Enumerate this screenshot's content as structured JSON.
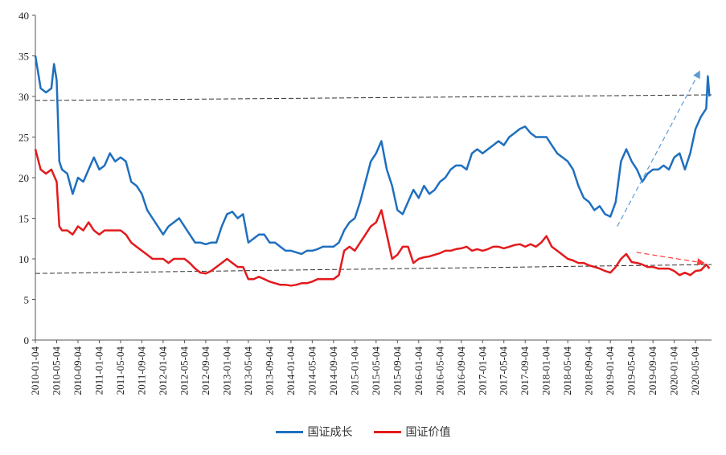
{
  "chart_data": {
    "type": "line",
    "title": "",
    "xlabel": "",
    "ylabel": "",
    "x_unit": "months since 2010-01-04",
    "xlim": [
      0,
      127
    ],
    "ylim": [
      0,
      40
    ],
    "yticks": [
      0,
      5,
      10,
      15,
      20,
      25,
      30,
      35,
      40
    ],
    "xtick_labels": [
      "2010-01-04",
      "2010-05-04",
      "2010-09-04",
      "2011-01-04",
      "2011-05-04",
      "2011-09-04",
      "2012-01-04",
      "2012-05-04",
      "2012-09-04",
      "2013-01-04",
      "2013-05-04",
      "2013-09-04",
      "2014-01-04",
      "2014-05-04",
      "2014-09-04",
      "2015-01-04",
      "2015-05-04",
      "2015-09-04",
      "2016-01-04",
      "2016-05-04",
      "2016-09-04",
      "2017-01-04",
      "2017-05-04",
      "2017-09-04",
      "2018-01-04",
      "2018-05-04",
      "2018-09-04",
      "2019-01-04",
      "2019-05-04",
      "2019-09-04",
      "2020-01-04",
      "2020-05-04"
    ],
    "grid": false,
    "legend_position": "bottom-center",
    "series": [
      {
        "name": "国证成长",
        "color": "#1F6FBF",
        "points": [
          [
            0,
            35
          ],
          [
            0.5,
            33
          ],
          [
            1,
            31
          ],
          [
            2,
            30.5
          ],
          [
            3,
            31
          ],
          [
            3.5,
            34
          ],
          [
            4,
            32
          ],
          [
            4.5,
            22
          ],
          [
            5,
            21
          ],
          [
            6,
            20.5
          ],
          [
            7,
            18
          ],
          [
            8,
            20
          ],
          [
            9,
            19.5
          ],
          [
            10,
            21
          ],
          [
            11,
            22.5
          ],
          [
            12,
            21
          ],
          [
            13,
            21.5
          ],
          [
            14,
            23
          ],
          [
            15,
            22
          ],
          [
            16,
            22.5
          ],
          [
            17,
            22
          ],
          [
            18,
            19.5
          ],
          [
            19,
            19
          ],
          [
            20,
            18
          ],
          [
            21,
            16
          ],
          [
            22,
            15
          ],
          [
            23,
            14
          ],
          [
            24,
            13
          ],
          [
            25,
            14
          ],
          [
            26,
            14.5
          ],
          [
            27,
            15
          ],
          [
            28,
            14
          ],
          [
            29,
            13
          ],
          [
            30,
            12
          ],
          [
            31,
            12
          ],
          [
            32,
            11.8
          ],
          [
            33,
            12
          ],
          [
            34,
            12
          ],
          [
            35,
            14
          ],
          [
            36,
            15.5
          ],
          [
            37,
            15.8
          ],
          [
            38,
            15
          ],
          [
            39,
            15.5
          ],
          [
            40,
            12
          ],
          [
            41,
            12.5
          ],
          [
            42,
            13
          ],
          [
            43,
            13
          ],
          [
            44,
            12
          ],
          [
            45,
            12
          ],
          [
            46,
            11.5
          ],
          [
            47,
            11
          ],
          [
            48,
            11
          ],
          [
            49,
            10.8
          ],
          [
            50,
            10.6
          ],
          [
            51,
            11
          ],
          [
            52,
            11
          ],
          [
            53,
            11.2
          ],
          [
            54,
            11.5
          ],
          [
            55,
            11.5
          ],
          [
            56,
            11.5
          ],
          [
            57,
            12
          ],
          [
            58,
            13.5
          ],
          [
            59,
            14.5
          ],
          [
            60,
            15
          ],
          [
            61,
            17
          ],
          [
            62,
            19.5
          ],
          [
            63,
            22
          ],
          [
            64,
            23
          ],
          [
            65,
            24.5
          ],
          [
            66,
            21
          ],
          [
            67,
            19
          ],
          [
            68,
            16
          ],
          [
            69,
            15.5
          ],
          [
            70,
            17
          ],
          [
            71,
            18.5
          ],
          [
            72,
            17.5
          ],
          [
            73,
            19
          ],
          [
            74,
            18
          ],
          [
            75,
            18.5
          ],
          [
            76,
            19.5
          ],
          [
            77,
            20
          ],
          [
            78,
            21
          ],
          [
            79,
            21.5
          ],
          [
            80,
            21.5
          ],
          [
            81,
            21
          ],
          [
            82,
            23
          ],
          [
            83,
            23.5
          ],
          [
            84,
            23
          ],
          [
            85,
            23.5
          ],
          [
            86,
            24
          ],
          [
            87,
            24.5
          ],
          [
            88,
            24
          ],
          [
            89,
            25
          ],
          [
            90,
            25.5
          ],
          [
            91,
            26
          ],
          [
            92,
            26.3
          ],
          [
            93,
            25.5
          ],
          [
            94,
            25
          ],
          [
            95,
            25
          ],
          [
            96,
            25
          ],
          [
            97,
            24
          ],
          [
            98,
            23
          ],
          [
            99,
            22.5
          ],
          [
            100,
            22
          ],
          [
            101,
            21
          ],
          [
            102,
            19
          ],
          [
            103,
            17.5
          ],
          [
            104,
            17
          ],
          [
            105,
            16
          ],
          [
            106,
            16.5
          ],
          [
            107,
            15.5
          ],
          [
            108,
            15.2
          ],
          [
            109,
            17
          ],
          [
            110,
            22
          ],
          [
            111,
            23.5
          ],
          [
            112,
            22
          ],
          [
            113,
            21
          ],
          [
            114,
            19.5
          ],
          [
            115,
            20.5
          ],
          [
            116,
            21
          ],
          [
            117,
            21
          ],
          [
            118,
            21.5
          ],
          [
            119,
            21
          ],
          [
            120,
            22.5
          ],
          [
            121,
            23
          ],
          [
            122,
            21
          ],
          [
            123,
            23
          ],
          [
            124,
            26
          ],
          [
            125,
            27.5
          ],
          [
            126,
            28.5
          ],
          [
            126.3,
            32.5
          ],
          [
            126.6,
            30
          ]
        ]
      },
      {
        "name": "国证价值",
        "color": "#E31A1C",
        "points": [
          [
            0,
            23.5
          ],
          [
            1,
            21
          ],
          [
            2,
            20.5
          ],
          [
            3,
            21
          ],
          [
            4,
            19.5
          ],
          [
            4.5,
            14
          ],
          [
            5,
            13.5
          ],
          [
            6,
            13.5
          ],
          [
            7,
            13
          ],
          [
            8,
            14
          ],
          [
            9,
            13.5
          ],
          [
            10,
            14.5
          ],
          [
            11,
            13.5
          ],
          [
            12,
            13
          ],
          [
            13,
            13.5
          ],
          [
            14,
            13.5
          ],
          [
            15,
            13.5
          ],
          [
            16,
            13.5
          ],
          [
            17,
            13
          ],
          [
            18,
            12
          ],
          [
            19,
            11.5
          ],
          [
            20,
            11
          ],
          [
            21,
            10.5
          ],
          [
            22,
            10
          ],
          [
            23,
            10
          ],
          [
            24,
            10
          ],
          [
            25,
            9.5
          ],
          [
            26,
            10
          ],
          [
            27,
            10
          ],
          [
            28,
            10
          ],
          [
            29,
            9.5
          ],
          [
            30,
            8.8
          ],
          [
            31,
            8.3
          ],
          [
            32,
            8.2
          ],
          [
            33,
            8.5
          ],
          [
            34,
            9
          ],
          [
            35,
            9.5
          ],
          [
            36,
            10
          ],
          [
            37,
            9.5
          ],
          [
            38,
            9
          ],
          [
            39,
            9
          ],
          [
            40,
            7.5
          ],
          [
            41,
            7.5
          ],
          [
            42,
            7.8
          ],
          [
            43,
            7.5
          ],
          [
            44,
            7.2
          ],
          [
            45,
            7
          ],
          [
            46,
            6.8
          ],
          [
            47,
            6.8
          ],
          [
            48,
            6.7
          ],
          [
            49,
            6.8
          ],
          [
            50,
            7
          ],
          [
            51,
            7
          ],
          [
            52,
            7.2
          ],
          [
            53,
            7.5
          ],
          [
            54,
            7.5
          ],
          [
            55,
            7.5
          ],
          [
            56,
            7.5
          ],
          [
            57,
            8
          ],
          [
            58,
            11
          ],
          [
            59,
            11.5
          ],
          [
            60,
            11
          ],
          [
            61,
            12
          ],
          [
            62,
            13
          ],
          [
            63,
            14
          ],
          [
            64,
            14.5
          ],
          [
            65,
            16
          ],
          [
            66,
            13
          ],
          [
            67,
            10
          ],
          [
            68,
            10.5
          ],
          [
            69,
            11.5
          ],
          [
            70,
            11.5
          ],
          [
            71,
            9.5
          ],
          [
            72,
            10
          ],
          [
            73,
            10.2
          ],
          [
            74,
            10.3
          ],
          [
            75,
            10.5
          ],
          [
            76,
            10.7
          ],
          [
            77,
            11
          ],
          [
            78,
            11
          ],
          [
            79,
            11.2
          ],
          [
            80,
            11.3
          ],
          [
            81,
            11.5
          ],
          [
            82,
            11
          ],
          [
            83,
            11.2
          ],
          [
            84,
            11
          ],
          [
            85,
            11.2
          ],
          [
            86,
            11.5
          ],
          [
            87,
            11.5
          ],
          [
            88,
            11.3
          ],
          [
            89,
            11.5
          ],
          [
            90,
            11.7
          ],
          [
            91,
            11.8
          ],
          [
            92,
            11.5
          ],
          [
            93,
            11.8
          ],
          [
            94,
            11.5
          ],
          [
            95,
            12
          ],
          [
            96,
            12.8
          ],
          [
            97,
            11.5
          ],
          [
            98,
            11
          ],
          [
            99,
            10.5
          ],
          [
            100,
            10
          ],
          [
            101,
            9.8
          ],
          [
            102,
            9.5
          ],
          [
            103,
            9.5
          ],
          [
            104,
            9.2
          ],
          [
            105,
            9
          ],
          [
            106,
            8.8
          ],
          [
            107,
            8.5
          ],
          [
            108,
            8.3
          ],
          [
            109,
            9
          ],
          [
            110,
            10
          ],
          [
            111,
            10.6
          ],
          [
            112,
            9.6
          ],
          [
            113,
            9.5
          ],
          [
            114,
            9.3
          ],
          [
            115,
            9
          ],
          [
            116,
            9
          ],
          [
            117,
            8.8
          ],
          [
            118,
            8.8
          ],
          [
            119,
            8.8
          ],
          [
            120,
            8.5
          ],
          [
            121,
            8
          ],
          [
            122,
            8.3
          ],
          [
            123,
            8
          ],
          [
            124,
            8.5
          ],
          [
            125,
            8.6
          ],
          [
            126,
            9.3
          ],
          [
            126.6,
            8.8
          ]
        ]
      }
    ],
    "reference_lines": [
      {
        "style": "dashed",
        "color": "#333333",
        "from": [
          0,
          29.5
        ],
        "to": [
          127,
          30.2
        ]
      },
      {
        "style": "dashed",
        "color": "#333333",
        "from": [
          0,
          8.2
        ],
        "to": [
          127,
          9.3
        ]
      }
    ],
    "annotations": [
      {
        "type": "dashed-arrow",
        "color": "#5B9BD5",
        "from": [
          109.3,
          14
        ],
        "to": [
          124.7,
          33
        ]
      },
      {
        "type": "dashed-arrow",
        "color": "#FF3B3B",
        "from": [
          112.9,
          10.8
        ],
        "to": [
          125.4,
          9.5
        ]
      }
    ]
  }
}
